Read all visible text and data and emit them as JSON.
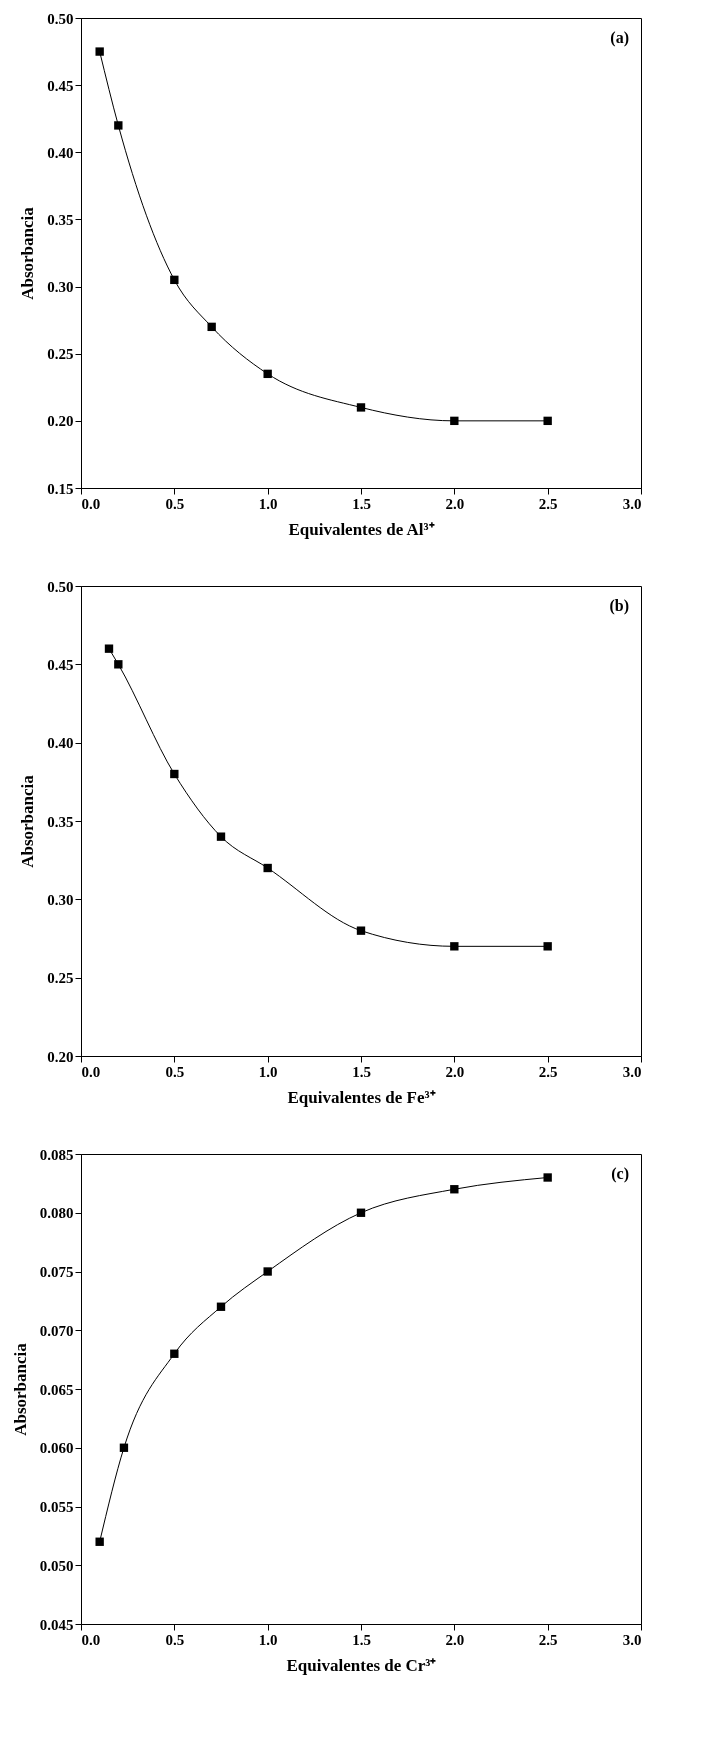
{
  "chart_data": [
    {
      "type": "line",
      "xlabel": "Equivalentes de Al³⁺",
      "ylabel": "Absorbancia",
      "annotations": [
        "(a)"
      ],
      "marker": "square",
      "grid": false,
      "x": [
        0.1,
        0.2,
        0.5,
        0.7,
        1.0,
        1.5,
        2.0,
        2.5
      ],
      "series": [
        {
          "color": "#000000",
          "values": [
            0.475,
            0.42,
            0.305,
            0.27,
            0.235,
            0.21,
            0.2,
            0.2
          ]
        }
      ],
      "xlim": [
        0,
        3
      ],
      "xticks": [
        {
          "value": 0,
          "label": "0.0"
        },
        {
          "value": 0.5,
          "label": "0.5"
        },
        {
          "value": 1,
          "label": "1.0"
        },
        {
          "value": 1.5,
          "label": "1.5"
        },
        {
          "value": 2,
          "label": "2.0"
        },
        {
          "value": 2.5,
          "label": "2.5"
        },
        {
          "value": 3,
          "label": "3.0"
        }
      ],
      "ylim": [
        0.15,
        0.5
      ],
      "yticks": [
        0.15,
        {
          "value": 0.2,
          "label": "0.20"
        },
        0.25,
        {
          "value": 0.3,
          "label": "0.30"
        },
        0.35,
        {
          "value": 0.4,
          "label": "0.40"
        },
        0.45,
        {
          "value": 0.5,
          "label": "0.50"
        }
      ]
    },
    {
      "type": "line",
      "xlabel": "Equivalentes de Fe³⁺",
      "ylabel": "Absorbancia",
      "annotations": [
        "(b)"
      ],
      "marker": "square",
      "grid": false,
      "x": [
        0.15,
        0.2,
        0.5,
        0.75,
        1.0,
        1.5,
        2.0,
        2.5
      ],
      "series": [
        {
          "color": "#000000",
          "values": [
            0.46,
            0.45,
            0.38,
            0.34,
            0.32,
            0.28,
            0.27,
            0.27
          ]
        }
      ],
      "xlim": [
        0,
        3
      ],
      "xticks": [
        {
          "value": 0,
          "label": "0.0"
        },
        {
          "value": 0.5,
          "label": "0.5"
        },
        {
          "value": 1,
          "label": "1.0"
        },
        {
          "value": 1.5,
          "label": "1.5"
        },
        {
          "value": 2,
          "label": "2.0"
        },
        {
          "value": 2.5,
          "label": "2.5"
        },
        {
          "value": 3,
          "label": "3.0"
        }
      ],
      "ylim": [
        0.2,
        0.5
      ],
      "yticks": [
        {
          "value": 0.2,
          "label": "0.20"
        },
        0.25,
        {
          "value": 0.3,
          "label": "0.30"
        },
        0.35,
        {
          "value": 0.4,
          "label": "0.40"
        },
        0.45,
        {
          "value": 0.5,
          "label": "0.50"
        }
      ]
    },
    {
      "type": "line",
      "xlabel": "Equivalentes de Cr³⁺",
      "ylabel": "Absorbancia",
      "annotations": [
        "(c)"
      ],
      "marker": "square",
      "grid": false,
      "x": [
        0.1,
        0.23,
        0.5,
        0.75,
        1.0,
        1.5,
        2.0,
        2.5
      ],
      "series": [
        {
          "color": "#000000",
          "values": [
            0.052,
            0.06,
            0.068,
            0.072,
            0.075,
            0.08,
            0.082,
            0.083
          ]
        }
      ],
      "xlim": [
        0,
        3
      ],
      "xticks": [
        {
          "value": 0,
          "label": "0.0"
        },
        {
          "value": 0.5,
          "label": "0.5"
        },
        {
          "value": 1,
          "label": "1.0"
        },
        {
          "value": 1.5,
          "label": "1.5"
        },
        {
          "value": 2,
          "label": "2.0"
        },
        {
          "value": 2.5,
          "label": "2.5"
        },
        {
          "value": 3,
          "label": "3.0"
        }
      ],
      "ylim": [
        0.045,
        0.085
      ],
      "yticks": [
        0.045,
        {
          "value": 0.05,
          "label": "0.050"
        },
        0.055,
        {
          "value": 0.06,
          "label": "0.060"
        },
        0.065,
        {
          "value": 0.07,
          "label": "0.070"
        },
        0.075,
        {
          "value": 0.08,
          "label": "0.080"
        },
        0.085
      ]
    }
  ]
}
